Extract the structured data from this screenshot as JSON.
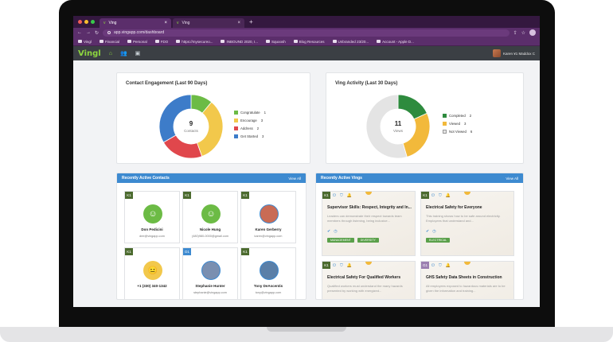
{
  "browser": {
    "tabs": [
      {
        "label": "Ving",
        "active": true
      },
      {
        "label": "Ving",
        "active": false
      }
    ],
    "url": "app.vingapp.com/dashboard",
    "bookmarks": [
      "Vingl",
      "Financial",
      "Personal",
      "FDO",
      "https://mysecureo...",
      "INBOUND 2020, I...",
      "Squoosh",
      "Blog Resources",
      "Unbranded 23/20...",
      "Account - Apple D..."
    ]
  },
  "app": {
    "logo": "Vingl",
    "user_name": "Karen ¥1 Maddox C"
  },
  "engagement": {
    "title": "Contact Engagement (Last 90 Days)",
    "center_value": "9",
    "center_label": "Contacts",
    "legend": [
      {
        "label": "Congratulate",
        "count": "1",
        "color": "#6cbb45"
      },
      {
        "label": "Encourage",
        "count": "3",
        "color": "#f2c84b"
      },
      {
        "label": "Address",
        "count": "2",
        "color": "#e0474c"
      },
      {
        "label": "Get Started",
        "count": "3",
        "color": "#3d7cc9"
      }
    ]
  },
  "activity": {
    "title": "Ving Activity (Last 30 Days)",
    "center_value": "11",
    "center_label": "Views",
    "legend": [
      {
        "label": "Completed",
        "count": "2",
        "color": "#2e8b3e"
      },
      {
        "label": "Viewed",
        "count": "3",
        "color": "#f2b93b"
      },
      {
        "label": "Not Viewed",
        "count": "6",
        "color": "#e4e4e4"
      }
    ]
  },
  "contacts_panel": {
    "title": "Recently Active Contacts",
    "view_all": "View All",
    "contacts": [
      {
        "badge": "K1",
        "name": "Don Pedicini",
        "email": "dee@vingapp.com",
        "face": "smile-icon"
      },
      {
        "badge": "K1",
        "name": "Nicole Hung",
        "email": "(480)980-0000@gmail.com",
        "face": "smile-icon"
      },
      {
        "badge": "K1",
        "name": "Karen Gerberry",
        "email": "karen@vingapp.com",
        "face": "photo"
      },
      {
        "badge": "K1",
        "name": "+1 (330) 340-1342",
        "email": "",
        "face": "neutral-icon"
      },
      {
        "badge": "D1",
        "name": "Stephanie Hunter",
        "email": "stephanie@vingapp.com",
        "face": "photo"
      },
      {
        "badge": "K1",
        "name": "Tony DeAscentis",
        "email": "tony@vingapp.com",
        "face": "photo"
      }
    ]
  },
  "vings_panel": {
    "title": "Recently Active Vings",
    "view_all": "View All",
    "vings": [
      {
        "badge": "K1",
        "title": "Supervisor Skills: Respect, Integrity and In...",
        "desc": "Leaders can demonstrate their respect towards team members through listening, being inclusive...",
        "tags": [
          "MANAGEMENT",
          "DIVERSITY"
        ]
      },
      {
        "badge": "K1",
        "title": "Electrical Safety for Everyone",
        "desc": "This training shows how to be safe around electricity. Employees that understand and...",
        "tags": [
          "ELECTRICAL"
        ]
      },
      {
        "badge": "K1",
        "title": "Electrical Safety For Qualified Workers",
        "desc": "Qualified workers must understand the many hazards presented by working with energized...",
        "tags": []
      },
      {
        "badge": "G1",
        "title": "GHS Safety Data Sheets in Construction",
        "desc": "All employees exposed to hazardous materials are to be given the information and training...",
        "tags": []
      }
    ]
  }
}
